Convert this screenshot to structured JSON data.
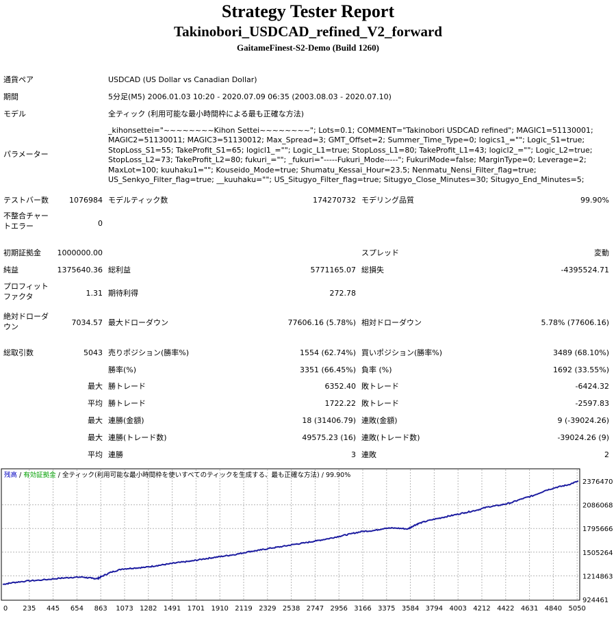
{
  "header": {
    "title": "Strategy Tester Report",
    "ea_name": "Takinobori_USDCAD_refined_V2_forward",
    "server": "GaitameFinest-S2-Demo (Build 1260)"
  },
  "settings": {
    "symbol_label": "通貨ペア",
    "symbol_value": "USDCAD (US Dollar vs Canadian Dollar)",
    "period_label": "期間",
    "period_value": "5分足(M5) 2006.01.03 10:20 - 2020.07.09 06:35 (2003.08.03 - 2020.07.10)",
    "model_label": "モデル",
    "model_value": "全ティック (利用可能な最小時間枠による最も正確な方法)",
    "params_label": "パラメーター",
    "params_lines": [
      "_kihonsettei=\"~~~~~~~~Kihon Settei~~~~~~~~\"; Lots=0.1; COMMENT=\"Takinobori USDCAD refined\"; MAGIC1=51130001;",
      "MAGIC2=51130011; MAGIC3=51130012; Max_Spread=3; GMT_Offset=2; Summer_Time_Type=0; logics1_=\"\"; Logic_S1=true;",
      "StopLoss_S1=55; TakeProfit_S1=65; logicl1_=\"\"; Logic_L1=true; StopLoss_L1=80; TakeProfit_L1=43; logicl2_=\"\"; Logic_L2=true;",
      "StopLoss_L2=73; TakeProfit_L2=80; fukuri_=\"\"; _fukuri=\"-----Fukuri_Mode-----\"; FukuriMode=false; MarginType=0; Leverage=2;",
      "MaxLot=100; kuuhaku1=\"\"; Kouseido_Mode=true; Shumatu_Kessai_Hour=23.5; Nenmatu_Nensi_Filter_flag=true;",
      "US_Senkyo_Filter_flag=true; __kuuhaku=\"\"; US_Situgyo_Filter_flag=true; Situgyo_Close_Minutes=30; Situgyo_End_Minutes=5;"
    ]
  },
  "stats": {
    "bars_label": "テストバー数",
    "bars_value": "1076984",
    "ticks_label": "モデルティック数",
    "ticks_value": "174270732",
    "quality_label": "モデリング品質",
    "quality_value": "99.90%",
    "mismatch_label_1": "不整合チャー",
    "mismatch_label_2": "トエラー",
    "mismatch_value": "0",
    "deposit_label": "初期証拠金",
    "deposit_value": "1000000.00",
    "spread_label": "スプレッド",
    "spread_value": "変動",
    "net_label": "純益",
    "net_value": "1375640.36",
    "gross_profit_label": "総利益",
    "gross_profit_value": "5771165.07",
    "gross_loss_label": "総損失",
    "gross_loss_value": "-4395524.71",
    "pf_label_1": "プロフィット",
    "pf_label_2": "ファクタ",
    "pf_value": "1.31",
    "expected_label": "期待利得",
    "expected_value": "272.78",
    "abs_dd_label_1": "絶対ドローダ",
    "abs_dd_label_2": "ウン",
    "abs_dd_value": "7034.57",
    "max_dd_label": "最大ドローダウン",
    "max_dd_value": "77606.16 (5.78%)",
    "rel_dd_label": "相対ドローダウン",
    "rel_dd_value": "5.78% (77606.16)",
    "trades_label": "総取引数",
    "trades_value": "5043",
    "short_label": "売りポジション(勝率%)",
    "short_value": "1554 (62.74%)",
    "long_label": "買いポジション(勝率%)",
    "long_value": "3489 (68.10%)",
    "win_label": "勝率(%)",
    "win_value": "3351 (66.45%)",
    "lose_label": "負率 (%)",
    "lose_value": "1692 (33.55%)",
    "max_label": "最大",
    "avg_label": "平均",
    "max_win_label": "勝トレード",
    "max_win_value": "6352.40",
    "max_loss_label": "敗トレード",
    "max_loss_value": "-6424.32",
    "avg_win_label": "勝トレード",
    "avg_win_value": "1722.22",
    "avg_loss_label": "敗トレード",
    "avg_loss_value": "-2597.83",
    "cons_win_money_label": "連勝(金額)",
    "cons_win_money_value": "18 (31406.79)",
    "cons_loss_money_label": "連敗(金額)",
    "cons_loss_money_value": "9 (-39024.26)",
    "cons_win_count_label": "連勝(トレード数)",
    "cons_win_count_value": "49575.23 (16)",
    "cons_loss_count_label": "連敗(トレード数)",
    "cons_loss_count_value": "-39024.26 (9)",
    "avg_cons_win_label": "連勝",
    "avg_cons_win_value": "3",
    "avg_cons_loss_label": "連敗",
    "avg_cons_loss_value": "2"
  },
  "chart_data": {
    "type": "line",
    "legend": {
      "balance": "残高",
      "sep1": " / ",
      "equity": "有効証拠金",
      "sep2": " / ",
      "rest": "全ティック(利用可能な最小時間枠を使いすべてのティックを生成する、最も正確な方法) / 99.90%"
    },
    "colors": {
      "line": "#1c1ca0",
      "balance": "#0000c0",
      "equity": "#00a000",
      "grid": "#b4b4b4"
    },
    "x_ticks": [
      "0",
      "235",
      "445",
      "654",
      "863",
      "1073",
      "1282",
      "1491",
      "1701",
      "1910",
      "2119",
      "2329",
      "2538",
      "2747",
      "2956",
      "3166",
      "3375",
      "3584",
      "3794",
      "4003",
      "4212",
      "4422",
      "4631",
      "4840",
      "5050"
    ],
    "y_ticks": [
      "2376470",
      "2086068",
      "1795666",
      "1505264",
      "1214863",
      "924461"
    ],
    "xlim": [
      0,
      5043
    ],
    "ylim": [
      924461,
      2376470
    ],
    "series": [
      {
        "x": [
          0,
          80,
          200,
          350,
          500,
          600,
          700,
          780,
          830,
          870,
          950,
          1050,
          1150,
          1250,
          1350,
          1450,
          1550,
          1650,
          1750,
          1850,
          1950,
          2050,
          2150,
          2250,
          2350,
          2450,
          2550,
          2650,
          2750,
          2850,
          2950,
          3050,
          3150,
          3250,
          3350,
          3450,
          3550,
          3600,
          3650,
          3750,
          3850,
          3950,
          4050,
          4150,
          4250,
          4350,
          4450,
          4550,
          4650,
          4750,
          4850,
          4950,
          5043
        ],
        "y": [
          1110000,
          1130000,
          1150000,
          1165000,
          1185000,
          1195000,
          1200000,
          1185000,
          1180000,
          1210000,
          1260000,
          1300000,
          1310000,
          1320000,
          1340000,
          1360000,
          1380000,
          1395000,
          1420000,
          1440000,
          1460000,
          1480000,
          1510000,
          1530000,
          1555000,
          1575000,
          1600000,
          1620000,
          1645000,
          1670000,
          1700000,
          1730000,
          1760000,
          1770000,
          1800000,
          1800000,
          1790000,
          1830000,
          1860000,
          1900000,
          1930000,
          1960000,
          1990000,
          2020000,
          2060000,
          2080000,
          2110000,
          2160000,
          2200000,
          2260000,
          2300000,
          2330000,
          2376470
        ]
      }
    ]
  }
}
